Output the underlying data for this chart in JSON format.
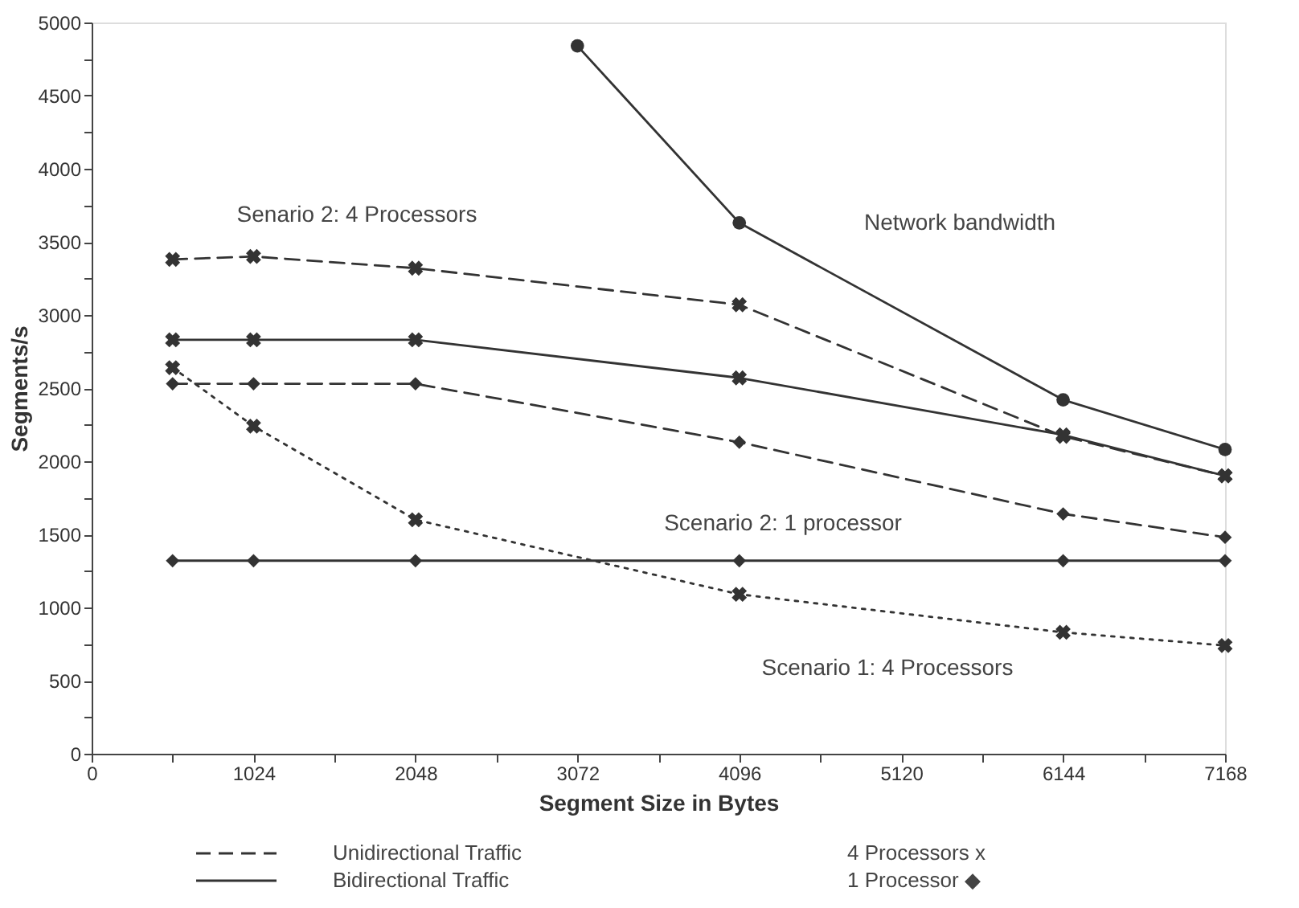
{
  "chart_data": {
    "type": "line",
    "xlabel": "Segment Size in Bytes",
    "ylabel": "Segments/s",
    "xlim": [
      0,
      7168
    ],
    "xticks": [
      0,
      {
        "value": 512,
        "label": null
      },
      1024,
      {
        "value": 1536,
        "label": null
      },
      2048,
      {
        "value": 2560,
        "label": null
      },
      3072,
      {
        "value": 3584,
        "label": null
      },
      4096,
      {
        "value": 4608,
        "label": null
      },
      5120,
      {
        "value": 5632,
        "label": null
      },
      6144,
      {
        "value": 6656,
        "label": null
      },
      7168
    ],
    "ylim": [
      0,
      5000
    ],
    "yticks": [
      0,
      {
        "value": 250,
        "label": null
      },
      500,
      {
        "value": 750,
        "label": null
      },
      1000,
      {
        "value": 1250,
        "label": null
      },
      1500,
      {
        "value": 1750,
        "label": null
      },
      2000,
      {
        "value": 2250,
        "label": null
      },
      2500,
      {
        "value": 2750,
        "label": null
      },
      3000,
      {
        "value": 3250,
        "label": null
      },
      3500,
      {
        "value": 3750,
        "label": null
      },
      4000,
      {
        "value": 4250,
        "label": null
      },
      4500,
      {
        "value": 4750,
        "label": null
      },
      5000
    ],
    "grid": false,
    "series": [
      {
        "color": "#333333",
        "line_style": "solid",
        "marker": "circle",
        "x": [
          3072,
          4096,
          6144,
          7168
        ],
        "values": [
          4840,
          3630,
          2420,
          2080
        ]
      },
      {
        "color": "#333333",
        "line_style": "dashed",
        "marker": "cross",
        "x": [
          512,
          1024,
          2048,
          4096,
          6144,
          7168
        ],
        "values": [
          3380,
          3400,
          3320,
          3070,
          2170,
          1900
        ]
      },
      {
        "color": "#333333",
        "line_style": "solid",
        "marker": "cross",
        "x": [
          512,
          1024,
          2048,
          4096,
          6144,
          7168
        ],
        "values": [
          2830,
          2830,
          2830,
          2570,
          2180,
          1900
        ]
      },
      {
        "color": "#333333",
        "line_style": "dashed",
        "marker": "diamond",
        "x": [
          512,
          1024,
          2048,
          4096,
          6144,
          7168
        ],
        "values": [
          2530,
          2530,
          2530,
          2130,
          1640,
          1480
        ]
      },
      {
        "color": "#333333",
        "line_style": "solid",
        "marker": "diamond",
        "x": [
          512,
          1024,
          2048,
          4096,
          6144,
          7168
        ],
        "values": [
          1320,
          1320,
          1320,
          1320,
          1320,
          1320
        ]
      },
      {
        "color": "#333333",
        "line_style": "dotted",
        "marker": "cross",
        "x": [
          512,
          1024,
          2048,
          4096,
          6144,
          7168
        ],
        "values": [
          2640,
          2240,
          1600,
          1090,
          830,
          740
        ]
      }
    ],
    "annotations": [
      "Senario 2: 4 Processors",
      "Network bandwidth",
      "Scenario 2: 1 processor",
      "Scenario 1: 4 Processors",
      "Unidirectional Traffic",
      "Bidirectional Traffic",
      "4 Processors x",
      "1 Processor ◆"
    ]
  }
}
